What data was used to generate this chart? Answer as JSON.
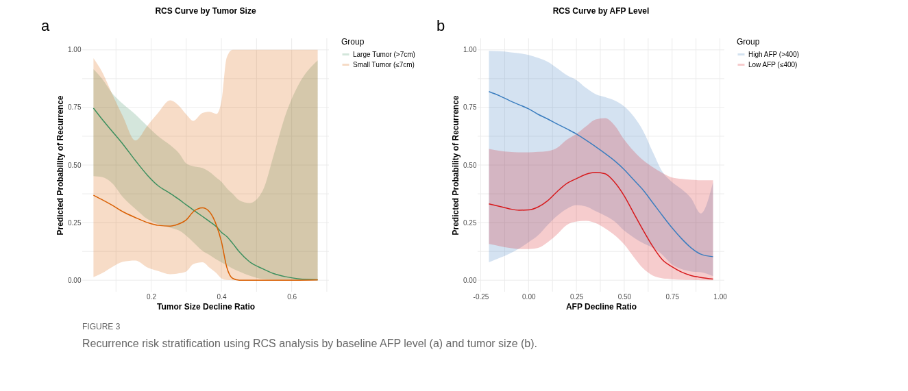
{
  "chart_data": [
    {
      "type": "line",
      "title": "RCS Curve by Tumor Size",
      "xlabel": "Tumor Size Decline Ratio",
      "ylabel": "Predicted Probability of Recurrence",
      "legend_title": "Group",
      "legend": "right",
      "grid": true,
      "annotations": [
        "a",
        "FIGURE 3",
        "Recurrence risk stratification using RCS analysis by baseline AFP level (a) and tumor size (b)."
      ],
      "xlim": [
        0.004,
        0.706
      ],
      "ylim": [
        -0.05,
        1.05
      ],
      "xticks": [
        {
          "value": 0.1,
          "label": null
        },
        0.2,
        {
          "value": 0.3,
          "label": null
        },
        0.4,
        {
          "value": 0.5,
          "label": null
        },
        0.6,
        {
          "value": 0.7,
          "label": null
        }
      ],
      "yticks": [
        {
          "value": 0,
          "label": "0.00"
        },
        {
          "value": 0.125,
          "label": null
        },
        {
          "value": 0.25,
          "label": "0.25"
        },
        {
          "value": 0.375,
          "label": null
        },
        {
          "value": 0.5,
          "label": "0.50"
        },
        {
          "value": 0.625,
          "label": null
        },
        {
          "value": 0.75,
          "label": "0.75"
        },
        {
          "value": 0.875,
          "label": null
        },
        {
          "value": 1,
          "label": "1.00"
        }
      ],
      "x": [
        0.036,
        0.06,
        0.09,
        0.12,
        0.155,
        0.19,
        0.22,
        0.254,
        0.28,
        0.3,
        0.32,
        0.346,
        0.366,
        0.386,
        0.4,
        0.415,
        0.432,
        0.451,
        0.48,
        0.517,
        0.55,
        0.583,
        0.62,
        0.674
      ],
      "series": [
        {
          "name": "Large Tumor (>7cm)",
          "color": "#3b8f5e",
          "values": [
            0.747,
            0.7,
            0.645,
            0.59,
            0.52,
            0.455,
            0.41,
            0.377,
            0.35,
            0.327,
            0.305,
            0.277,
            0.255,
            0.232,
            0.208,
            0.19,
            0.16,
            0.123,
            0.08,
            0.05,
            0.028,
            0.015,
            0.006,
            0.002
          ],
          "upper": [
            0.916,
            0.875,
            0.81,
            0.765,
            0.72,
            0.668,
            0.625,
            0.587,
            0.55,
            0.507,
            0.495,
            0.487,
            0.47,
            0.445,
            0.427,
            0.4,
            0.375,
            0.347,
            0.335,
            0.387,
            0.55,
            0.72,
            0.85,
            0.954
          ],
          "lower": [
            0.452,
            0.448,
            0.42,
            0.36,
            0.31,
            0.265,
            0.243,
            0.228,
            0.215,
            0.193,
            0.165,
            0.128,
            0.11,
            0.09,
            0.078,
            0.065,
            0.05,
            0.038,
            0.02,
            0.005,
            0.002,
            0.001,
            0,
            0
          ]
        },
        {
          "name": "Small Tumor (≤7cm)",
          "color": "#d95f02",
          "values": [
            0.369,
            0.35,
            0.325,
            0.297,
            0.272,
            0.25,
            0.238,
            0.235,
            0.245,
            0.262,
            0.297,
            0.314,
            0.297,
            0.238,
            0.168,
            0.058,
            0.008,
            0,
            0,
            0,
            0,
            0,
            0,
            0.001
          ],
          "upper": [
            0.964,
            0.906,
            0.806,
            0.71,
            0.607,
            0.672,
            0.727,
            0.781,
            0.756,
            0.72,
            0.692,
            0.726,
            0.731,
            0.722,
            0.776,
            0.966,
            1,
            1,
            1,
            1,
            1,
            1,
            1,
            1
          ],
          "lower": [
            0.013,
            0.03,
            0.058,
            0.08,
            0.085,
            0.055,
            0.04,
            0.026,
            0.03,
            0.038,
            0.07,
            0.078,
            0.055,
            0.03,
            0.008,
            0.001,
            0,
            0,
            0,
            0,
            0,
            0,
            0,
            0
          ]
        }
      ]
    },
    {
      "type": "line",
      "title": "RCS Curve by AFP Level",
      "xlabel": "AFP Decline Ratio",
      "ylabel": "Predicted Probability of Recurrence",
      "legend_title": "Group",
      "legend": "right",
      "grid": true,
      "annotations": [
        "b"
      ],
      "xlim": [
        -0.266,
        1.023
      ],
      "ylim": [
        -0.05,
        1.05
      ],
      "xticks": [
        -0.25,
        {
          "value": -0.125,
          "label": null
        },
        {
          "value": 0,
          "label": "0.00"
        },
        {
          "value": 0.125,
          "label": null
        },
        0.25,
        {
          "value": 0.375,
          "label": null
        },
        {
          "value": 0.5,
          "label": "0.50"
        },
        {
          "value": 0.625,
          "label": null
        },
        0.75,
        {
          "value": 0.875,
          "label": null
        },
        {
          "value": 1,
          "label": "1.00"
        }
      ],
      "yticks": [
        {
          "value": 0,
          "label": "0.00"
        },
        {
          "value": 0.125,
          "label": null
        },
        {
          "value": 0.25,
          "label": "0.25"
        },
        {
          "value": 0.375,
          "label": null
        },
        {
          "value": 0.5,
          "label": "0.50"
        },
        {
          "value": 0.625,
          "label": null
        },
        {
          "value": 0.75,
          "label": "0.75"
        },
        {
          "value": 0.875,
          "label": null
        },
        {
          "value": 1,
          "label": "1.00"
        }
      ],
      "x": [
        -0.207,
        -0.15,
        -0.1,
        -0.05,
        0,
        0.05,
        0.1,
        0.15,
        0.2,
        0.25,
        0.3,
        0.35,
        0.4,
        0.45,
        0.5,
        0.55,
        0.6,
        0.65,
        0.7,
        0.75,
        0.8,
        0.85,
        0.9,
        0.964
      ],
      "series": [
        {
          "name": "High AFP (>400)",
          "color": "#3a7dbf",
          "values": [
            0.819,
            0.8,
            0.78,
            0.762,
            0.744,
            0.72,
            0.7,
            0.678,
            0.657,
            0.635,
            0.608,
            0.58,
            0.55,
            0.518,
            0.48,
            0.435,
            0.39,
            0.335,
            0.28,
            0.227,
            0.18,
            0.14,
            0.113,
            0.102
          ],
          "upper": [
            0.996,
            0.994,
            0.99,
            0.985,
            0.978,
            0.965,
            0.948,
            0.92,
            0.89,
            0.869,
            0.835,
            0.808,
            0.795,
            0.78,
            0.754,
            0.71,
            0.646,
            0.555,
            0.47,
            0.426,
            0.395,
            0.355,
            0.29,
            0.426
          ],
          "lower": [
            0.078,
            0.097,
            0.115,
            0.137,
            0.165,
            0.195,
            0.24,
            0.28,
            0.31,
            0.326,
            0.32,
            0.3,
            0.28,
            0.255,
            0.215,
            0.185,
            0.16,
            0.14,
            0.11,
            0.068,
            0.048,
            0.038,
            0.035,
            0.018
          ]
        },
        {
          "name": "Low AFP (≤400)",
          "color": "#d7191c",
          "values": [
            0.331,
            0.32,
            0.31,
            0.304,
            0.305,
            0.318,
            0.345,
            0.385,
            0.42,
            0.441,
            0.46,
            0.468,
            0.462,
            0.425,
            0.366,
            0.29,
            0.215,
            0.145,
            0.088,
            0.058,
            0.035,
            0.02,
            0.012,
            0.005
          ],
          "upper": [
            0.57,
            0.562,
            0.557,
            0.555,
            0.555,
            0.557,
            0.56,
            0.575,
            0.61,
            0.635,
            0.668,
            0.698,
            0.704,
            0.672,
            0.61,
            0.56,
            0.52,
            0.49,
            0.465,
            0.446,
            0.44,
            0.436,
            0.434,
            0.434
          ],
          "lower": [
            0.157,
            0.148,
            0.14,
            0.135,
            0.135,
            0.14,
            0.165,
            0.2,
            0.24,
            0.255,
            0.258,
            0.248,
            0.225,
            0.195,
            0.155,
            0.1,
            0.05,
            0.02,
            0.008,
            0.004,
            0.002,
            0.001,
            0,
            0
          ]
        }
      ]
    }
  ]
}
